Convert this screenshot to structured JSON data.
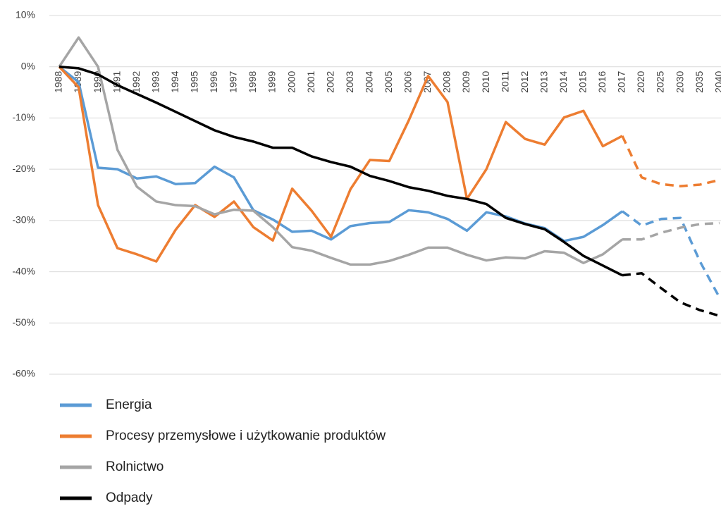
{
  "chart_data": {
    "type": "line",
    "categories": [
      "1988",
      "1989",
      "1990",
      "1991",
      "1992",
      "1993",
      "1994",
      "1995",
      "1996",
      "1997",
      "1998",
      "1999",
      "2000",
      "2001",
      "2002",
      "2003",
      "2004",
      "2005",
      "2006",
      "2007",
      "2008",
      "2009",
      "2010",
      "2011",
      "2012",
      "2013",
      "2014",
      "2015",
      "2016",
      "2017",
      "2020",
      "2025",
      "2030",
      "2035",
      "2040"
    ],
    "dashed_from": "2017",
    "ylim": [
      10,
      -60
    ],
    "yticks": [
      {
        "value": 10,
        "label": "10%"
      },
      {
        "value": 0,
        "label": "0%"
      },
      {
        "value": -10,
        "label": "-10%"
      },
      {
        "value": -20,
        "label": "-20%"
      },
      {
        "value": -30,
        "label": "-30%"
      },
      {
        "value": -40,
        "label": "-40%"
      },
      {
        "value": -50,
        "label": "-50%"
      },
      {
        "value": -60,
        "label": "-60%"
      }
    ],
    "grid": true,
    "series": [
      {
        "name": "Energia",
        "color": "#5b9bd5",
        "values": [
          0,
          -3,
          -19.7,
          -20,
          -21.8,
          -21.4,
          -22.9,
          -22.7,
          -19.5,
          -21.6,
          -28,
          -29.8,
          -32.2,
          -32,
          -33.7,
          -31.1,
          -30.5,
          -30.3,
          -28,
          -28.4,
          -29.7,
          -32,
          -28.4,
          -29.2,
          -30.6,
          -31.5,
          -34,
          -33.2,
          -30.9,
          -28.2,
          -31,
          -29.7,
          -29.5,
          -38,
          -45
        ]
      },
      {
        "name": "Procesy przemysłowe i użytkowanie produktów",
        "color": "#ed7d31",
        "values": [
          0,
          -4,
          -27,
          -35.4,
          -36.6,
          -38,
          -31.8,
          -27,
          -29.3,
          -26.3,
          -31.3,
          -33.9,
          -23.8,
          -28.1,
          -33.2,
          -23.9,
          -18.2,
          -18.4,
          -10.5,
          -1.8,
          -6.9,
          -25.8,
          -20,
          -10.8,
          -14.1,
          -15.2,
          -9.9,
          -8.6,
          -15.5,
          -13.5,
          -21.6,
          -22.9,
          -23.3,
          -23,
          -22.1
        ]
      },
      {
        "name": "Rolnictwo",
        "color": "#a5a5a5",
        "values": [
          0,
          5.7,
          0,
          -16.2,
          -23.4,
          -26.3,
          -27,
          -27.2,
          -28.8,
          -27.9,
          -28.1,
          -31.3,
          -35.2,
          -35.9,
          -37.3,
          -38.6,
          -38.6,
          -37.9,
          -36.7,
          -35.3,
          -35.3,
          -36.7,
          -37.8,
          -37.2,
          -37.4,
          -36,
          -36.3,
          -38.3,
          -36.6,
          -33.7,
          -33.7,
          -32.4,
          -31.4,
          -30.7,
          -30.5
        ]
      },
      {
        "name": "Odpady",
        "color": "#000000",
        "values": [
          0,
          -0.3,
          -1.5,
          -3.6,
          -5.3,
          -7,
          -8.8,
          -10.6,
          -12.4,
          -13.7,
          -14.6,
          -15.8,
          -15.8,
          -17.5,
          -18.6,
          -19.5,
          -21.3,
          -22.3,
          -23.5,
          -24.2,
          -25.2,
          -25.8,
          -26.8,
          -29.5,
          -30.7,
          -31.7,
          -34.2,
          -36.9,
          -38.8,
          -40.7,
          -40.3,
          -43.2,
          -46,
          -47.5,
          -48.6
        ]
      }
    ]
  }
}
